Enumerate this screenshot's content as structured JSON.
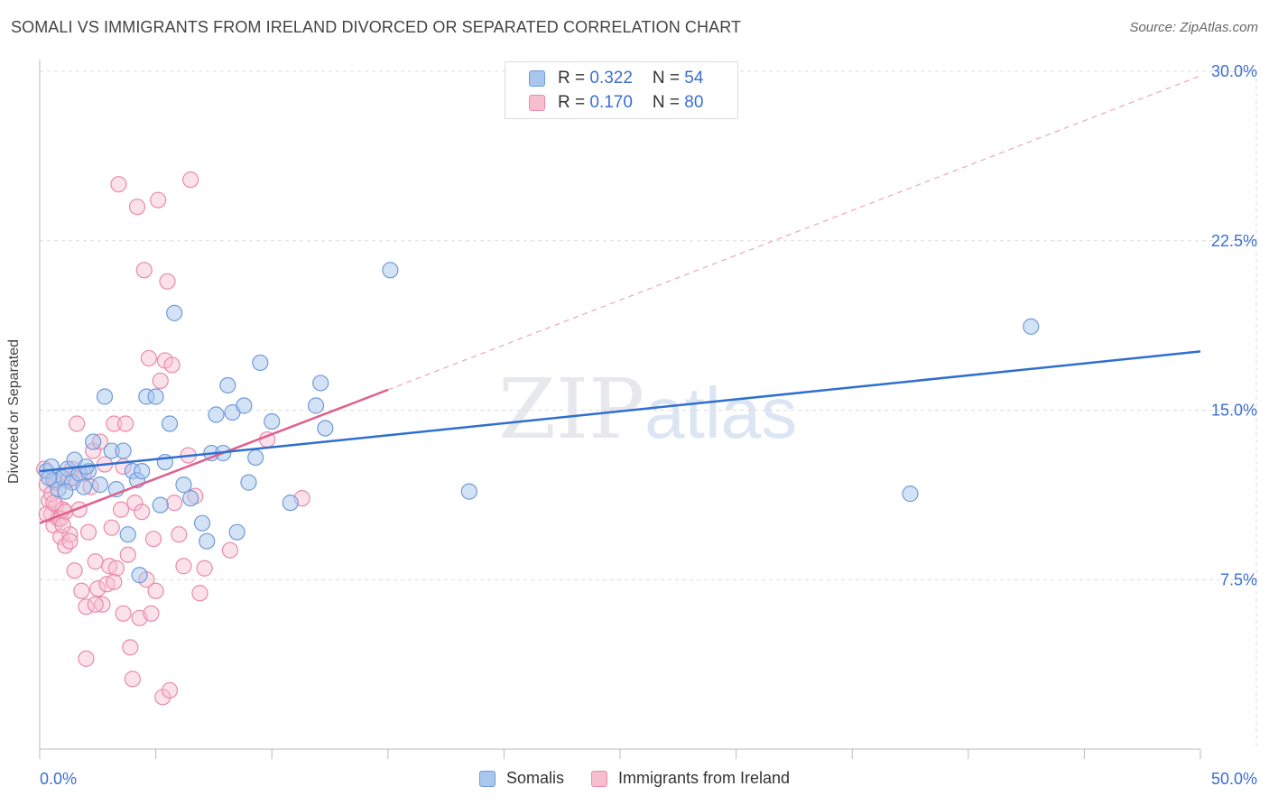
{
  "header": {
    "title": "SOMALI VS IMMIGRANTS FROM IRELAND DIVORCED OR SEPARATED CORRELATION CHART",
    "source": "Source: ZipAtlas.com"
  },
  "watermark": {
    "zip": "ZIP",
    "atlas": "atlas"
  },
  "legend_top": {
    "somali": {
      "r_label": "R = ",
      "r_value": "0.322",
      "n_label": "N = ",
      "n_value": "54"
    },
    "ireland": {
      "r_label": "R = ",
      "r_value": "0.170",
      "n_label": "N = ",
      "n_value": "80"
    }
  },
  "colors": {
    "somali_fill": "#a9c6ee",
    "somali_stroke": "#6f9bd9",
    "somali_line": "#2e6fcf",
    "ireland_fill": "#f6bfd0",
    "ireland_stroke": "#e98aab",
    "ireland_line": "#e0608e",
    "axis_text": "#3b6fd1",
    "grid": "#dddddd"
  },
  "chart_data": {
    "type": "scatter",
    "title": "SOMALI VS IMMIGRANTS FROM IRELAND DIVORCED OR SEPARATED CORRELATION CHART",
    "xlabel": "",
    "ylabel": "Divorced or Separated",
    "xlim": [
      0,
      50
    ],
    "ylim": [
      0,
      30
    ],
    "x_tick_labels": [
      "0.0%",
      "50.0%"
    ],
    "y_ticks": [
      7.5,
      15.0,
      22.5,
      30.0
    ],
    "y_tick_labels": [
      "7.5%",
      "15.0%",
      "22.5%",
      "30.0%"
    ],
    "grid": true,
    "legend_position": "bottom",
    "series": [
      {
        "name": "Somalis",
        "trend": {
          "x": [
            0,
            50
          ],
          "y": [
            12.3,
            17.6
          ],
          "style": "solid"
        },
        "points": [
          [
            0.3,
            12.3
          ],
          [
            0.5,
            12.5
          ],
          [
            0.6,
            11.9
          ],
          [
            0.8,
            11.5
          ],
          [
            1.0,
            12.0
          ],
          [
            1.2,
            12.4
          ],
          [
            1.4,
            11.8
          ],
          [
            1.5,
            12.8
          ],
          [
            1.7,
            12.2
          ],
          [
            1.9,
            11.6
          ],
          [
            2.1,
            12.3
          ],
          [
            2.3,
            13.6
          ],
          [
            2.6,
            11.7
          ],
          [
            2.8,
            15.6
          ],
          [
            3.1,
            13.2
          ],
          [
            3.3,
            11.5
          ],
          [
            3.6,
            13.2
          ],
          [
            3.8,
            9.5
          ],
          [
            4.0,
            12.3
          ],
          [
            4.2,
            11.9
          ],
          [
            4.3,
            7.7
          ],
          [
            4.4,
            12.3
          ],
          [
            4.6,
            15.6
          ],
          [
            5.0,
            15.6
          ],
          [
            5.2,
            10.8
          ],
          [
            5.4,
            12.7
          ],
          [
            5.6,
            14.4
          ],
          [
            5.8,
            19.3
          ],
          [
            6.2,
            11.7
          ],
          [
            6.5,
            11.1
          ],
          [
            7.0,
            10.0
          ],
          [
            7.2,
            9.2
          ],
          [
            7.4,
            13.1
          ],
          [
            7.6,
            14.8
          ],
          [
            7.9,
            13.1
          ],
          [
            8.1,
            16.1
          ],
          [
            8.3,
            14.9
          ],
          [
            8.5,
            9.6
          ],
          [
            8.8,
            15.2
          ],
          [
            9.0,
            11.8
          ],
          [
            9.3,
            12.9
          ],
          [
            9.5,
            17.1
          ],
          [
            10.0,
            14.5
          ],
          [
            10.8,
            10.9
          ],
          [
            11.9,
            15.2
          ],
          [
            12.1,
            16.2
          ],
          [
            12.3,
            14.2
          ],
          [
            15.1,
            21.2
          ],
          [
            18.5,
            11.4
          ],
          [
            37.5,
            11.3
          ],
          [
            42.7,
            18.7
          ],
          [
            0.4,
            12.0
          ],
          [
            1.1,
            11.4
          ],
          [
            2.0,
            12.5
          ]
        ]
      },
      {
        "name": "Immigrants from Ireland",
        "trend": {
          "x": [
            0,
            15
          ],
          "y": [
            10.0,
            15.9
          ],
          "x_dashed": [
            15,
            50
          ],
          "y_dashed": [
            15.9,
            29.8
          ],
          "style": "solid+dashed"
        },
        "points": [
          [
            0.2,
            12.4
          ],
          [
            0.3,
            11.7
          ],
          [
            0.4,
            11.0
          ],
          [
            0.5,
            10.4
          ],
          [
            0.6,
            9.9
          ],
          [
            0.7,
            10.8
          ],
          [
            0.8,
            10.2
          ],
          [
            0.9,
            9.4
          ],
          [
            1.0,
            10.6
          ],
          [
            1.1,
            9.0
          ],
          [
            1.2,
            11.9
          ],
          [
            1.3,
            9.5
          ],
          [
            1.4,
            12.4
          ],
          [
            1.5,
            7.9
          ],
          [
            1.6,
            14.4
          ],
          [
            1.7,
            10.6
          ],
          [
            1.8,
            7.0
          ],
          [
            1.9,
            12.2
          ],
          [
            2.0,
            6.3
          ],
          [
            2.1,
            9.6
          ],
          [
            2.2,
            11.6
          ],
          [
            2.3,
            13.2
          ],
          [
            2.4,
            8.3
          ],
          [
            2.5,
            7.1
          ],
          [
            2.6,
            13.6
          ],
          [
            2.7,
            6.4
          ],
          [
            2.8,
            12.6
          ],
          [
            2.9,
            7.3
          ],
          [
            3.0,
            8.1
          ],
          [
            3.1,
            9.8
          ],
          [
            3.2,
            14.4
          ],
          [
            3.3,
            8.0
          ],
          [
            3.4,
            25.0
          ],
          [
            3.5,
            10.6
          ],
          [
            3.6,
            12.5
          ],
          [
            3.7,
            14.4
          ],
          [
            3.8,
            8.6
          ],
          [
            3.9,
            4.5
          ],
          [
            4.0,
            3.1
          ],
          [
            4.1,
            10.9
          ],
          [
            4.2,
            24.0
          ],
          [
            4.3,
            5.8
          ],
          [
            4.4,
            10.5
          ],
          [
            4.5,
            21.2
          ],
          [
            4.6,
            7.5
          ],
          [
            4.7,
            17.3
          ],
          [
            4.8,
            6.0
          ],
          [
            4.9,
            9.3
          ],
          [
            5.0,
            7.0
          ],
          [
            5.1,
            24.3
          ],
          [
            5.2,
            16.3
          ],
          [
            5.3,
            2.3
          ],
          [
            5.4,
            17.2
          ],
          [
            5.5,
            20.7
          ],
          [
            5.6,
            2.6
          ],
          [
            5.7,
            17.0
          ],
          [
            5.8,
            10.9
          ],
          [
            6.0,
            9.5
          ],
          [
            6.2,
            8.1
          ],
          [
            6.4,
            13.0
          ],
          [
            6.5,
            25.2
          ],
          [
            6.7,
            11.2
          ],
          [
            6.9,
            6.9
          ],
          [
            7.1,
            8.0
          ],
          [
            8.2,
            8.8
          ],
          [
            9.8,
            13.7
          ],
          [
            11.3,
            11.1
          ],
          [
            0.3,
            10.4
          ],
          [
            0.5,
            11.3
          ],
          [
            0.7,
            11.8
          ],
          [
            0.9,
            10.2
          ],
          [
            1.1,
            10.5
          ],
          [
            1.3,
            9.2
          ],
          [
            1.5,
            12.0
          ],
          [
            2.0,
            4.0
          ],
          [
            2.4,
            6.4
          ],
          [
            3.2,
            7.4
          ],
          [
            3.6,
            6.0
          ],
          [
            1.0,
            9.9
          ],
          [
            0.6,
            10.9
          ]
        ]
      }
    ]
  },
  "bottom_legend": {
    "somali_label": "Somalis",
    "ireland_label": "Immigrants from Ireland"
  }
}
